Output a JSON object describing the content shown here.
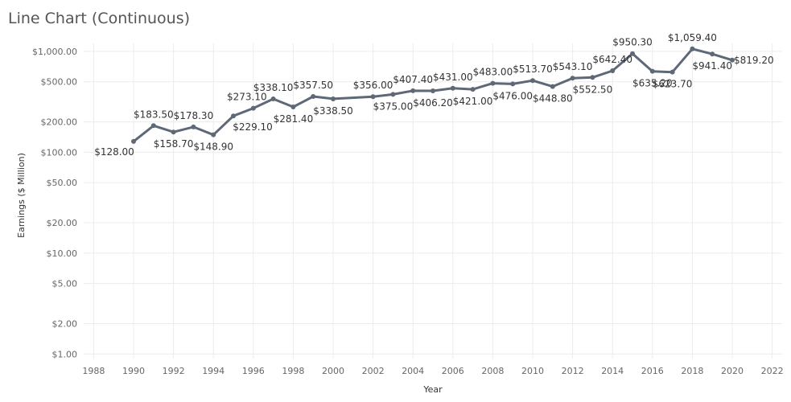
{
  "chart_data": {
    "type": "line",
    "title": "Line Chart (Continuous)",
    "xlabel": "Year",
    "ylabel": "Earnings ($ Million)",
    "xlim": [
      1987.5,
      2022.5
    ],
    "ylim": [
      0.9,
      1200
    ],
    "y_scale": "log",
    "x_ticks": [
      1988,
      1990,
      1992,
      1994,
      1996,
      1998,
      2000,
      2002,
      2004,
      2006,
      2008,
      2010,
      2012,
      2014,
      2016,
      2018,
      2020,
      2022
    ],
    "y_ticks": [
      {
        "value": 1,
        "label": "$1.00"
      },
      {
        "value": 2,
        "label": "$2.00"
      },
      {
        "value": 5,
        "label": "$5.00"
      },
      {
        "value": 10,
        "label": "$10.00"
      },
      {
        "value": 20,
        "label": "$20.00"
      },
      {
        "value": 50,
        "label": "$50.00"
      },
      {
        "value": 100,
        "label": "$100.00"
      },
      {
        "value": 200,
        "label": "$200.00"
      },
      {
        "value": 500,
        "label": "$500.00"
      },
      {
        "value": 1000,
        "label": "$1,000.00"
      }
    ],
    "grid": true,
    "series_color": "#5f6877",
    "points": [
      {
        "x": 1990,
        "y": 128.0,
        "label": "$128.00",
        "pos": "below-left"
      },
      {
        "x": 1991,
        "y": 183.5,
        "label": "$183.50",
        "pos": "above"
      },
      {
        "x": 1992,
        "y": 158.7,
        "label": "$158.70",
        "pos": "below"
      },
      {
        "x": 1993,
        "y": 178.3,
        "label": "$178.30",
        "pos": "above"
      },
      {
        "x": 1994,
        "y": 148.9,
        "label": "$148.90",
        "pos": "below"
      },
      {
        "x": 1995,
        "y": 229.1,
        "label": "$229.10",
        "pos": "below-right"
      },
      {
        "x": 1996,
        "y": 273.1,
        "label": "$273.10",
        "pos": "above-left"
      },
      {
        "x": 1997,
        "y": 338.1,
        "label": "$338.10",
        "pos": "above"
      },
      {
        "x": 1998,
        "y": 281.4,
        "label": "$281.40",
        "pos": "below"
      },
      {
        "x": 1999,
        "y": 357.5,
        "label": "$357.50",
        "pos": "above"
      },
      {
        "x": 2000,
        "y": 338.5,
        "label": "$338.50",
        "pos": "below"
      },
      {
        "x": 2002,
        "y": 356.0,
        "label": "$356.00",
        "pos": "above"
      },
      {
        "x": 2003,
        "y": 375.0,
        "label": "$375.00",
        "pos": "below"
      },
      {
        "x": 2004,
        "y": 407.4,
        "label": "$407.40",
        "pos": "above"
      },
      {
        "x": 2005,
        "y": 406.2,
        "label": "$406.20",
        "pos": "below"
      },
      {
        "x": 2006,
        "y": 431.0,
        "label": "$431.00",
        "pos": "above"
      },
      {
        "x": 2007,
        "y": 421.0,
        "label": "$421.00",
        "pos": "below"
      },
      {
        "x": 2008,
        "y": 483.0,
        "label": "$483.00",
        "pos": "above"
      },
      {
        "x": 2009,
        "y": 476.0,
        "label": "$476.00",
        "pos": "below"
      },
      {
        "x": 2010,
        "y": 513.7,
        "label": "$513.70",
        "pos": "above"
      },
      {
        "x": 2011,
        "y": 448.8,
        "label": "$448.80",
        "pos": "below"
      },
      {
        "x": 2012,
        "y": 543.1,
        "label": "$543.10",
        "pos": "above"
      },
      {
        "x": 2013,
        "y": 552.5,
        "label": "$552.50",
        "pos": "below"
      },
      {
        "x": 2014,
        "y": 642.4,
        "label": "$642.40",
        "pos": "above"
      },
      {
        "x": 2015,
        "y": 950.3,
        "label": "$950.30",
        "pos": "above"
      },
      {
        "x": 2016,
        "y": 635.2,
        "label": "$635.20",
        "pos": "below"
      },
      {
        "x": 2017,
        "y": 623.7,
        "label": "$623.70",
        "pos": "below"
      },
      {
        "x": 2018,
        "y": 1059.4,
        "label": "$1,059.40",
        "pos": "above"
      },
      {
        "x": 2019,
        "y": 941.4,
        "label": "$941.40",
        "pos": "below"
      },
      {
        "x": 2020,
        "y": 819.2,
        "label": "$819.20",
        "pos": "right"
      }
    ]
  }
}
